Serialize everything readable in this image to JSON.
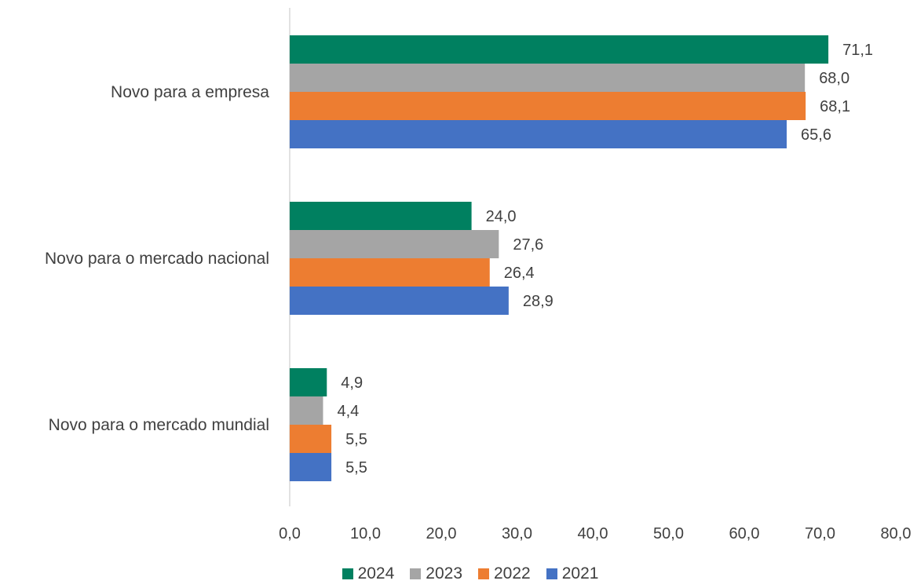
{
  "chart_data": {
    "type": "bar",
    "orientation": "horizontal",
    "categories": [
      "Novo para a empresa",
      "Novo para o mercado nacional",
      "Novo para o mercado mundial"
    ],
    "series": [
      {
        "name": "2024",
        "color": "#008060",
        "values": [
          71.1,
          24.0,
          4.9
        ],
        "labels": [
          "71,1",
          "24,0",
          "4,9"
        ]
      },
      {
        "name": "2023",
        "color": "#A5A5A5",
        "values": [
          68.0,
          27.6,
          4.4
        ],
        "labels": [
          "68,0",
          "27,6",
          "4,4"
        ]
      },
      {
        "name": "2022",
        "color": "#ED7D31",
        "values": [
          68.1,
          26.4,
          5.5
        ],
        "labels": [
          "68,1",
          "26,4",
          "5,5"
        ]
      },
      {
        "name": "2021",
        "color": "#4472C4",
        "values": [
          65.6,
          28.9,
          5.5
        ],
        "labels": [
          "65,6",
          "28,9",
          "5,5"
        ]
      }
    ],
    "xlim": [
      0,
      80
    ],
    "x_ticks": [
      0,
      10,
      20,
      30,
      40,
      50,
      60,
      70,
      80
    ],
    "x_tick_labels": [
      "0,0",
      "10,0",
      "20,0",
      "30,0",
      "40,0",
      "50,0",
      "60,0",
      "70,0",
      "80,0"
    ],
    "grid": false,
    "legend_position": "bottom"
  }
}
